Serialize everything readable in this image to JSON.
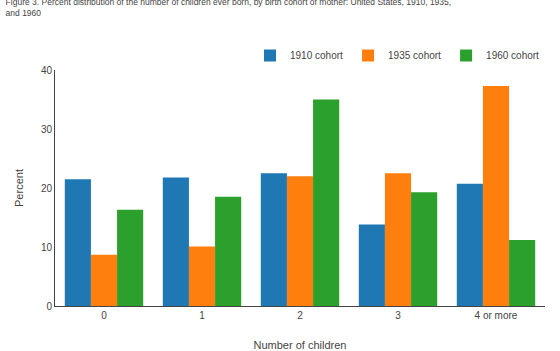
{
  "chart_data": {
    "type": "bar",
    "title": "Figure 3. Percent distribution of the number of children ever born, by birth cohort of mother: United States, 1910, 1935,\nand 1960",
    "xlabel": "Number of children",
    "ylabel": "Percent",
    "categories": [
      "0",
      "1",
      "2",
      "3",
      "4 or more"
    ],
    "series": [
      {
        "name": "1910 cohort",
        "values": [
          21.5,
          21.8,
          22.5,
          13.8,
          20.7
        ]
      },
      {
        "name": "1935 cohort",
        "values": [
          8.7,
          10.1,
          22.0,
          22.5,
          37.3
        ]
      },
      {
        "name": "1960 cohort",
        "values": [
          16.3,
          18.5,
          35.0,
          19.3,
          11.2
        ]
      }
    ],
    "ylim": [
      0,
      40
    ],
    "yticks": [
      0,
      10,
      20,
      30,
      40
    ],
    "grid": false,
    "legend": "upper right"
  }
}
